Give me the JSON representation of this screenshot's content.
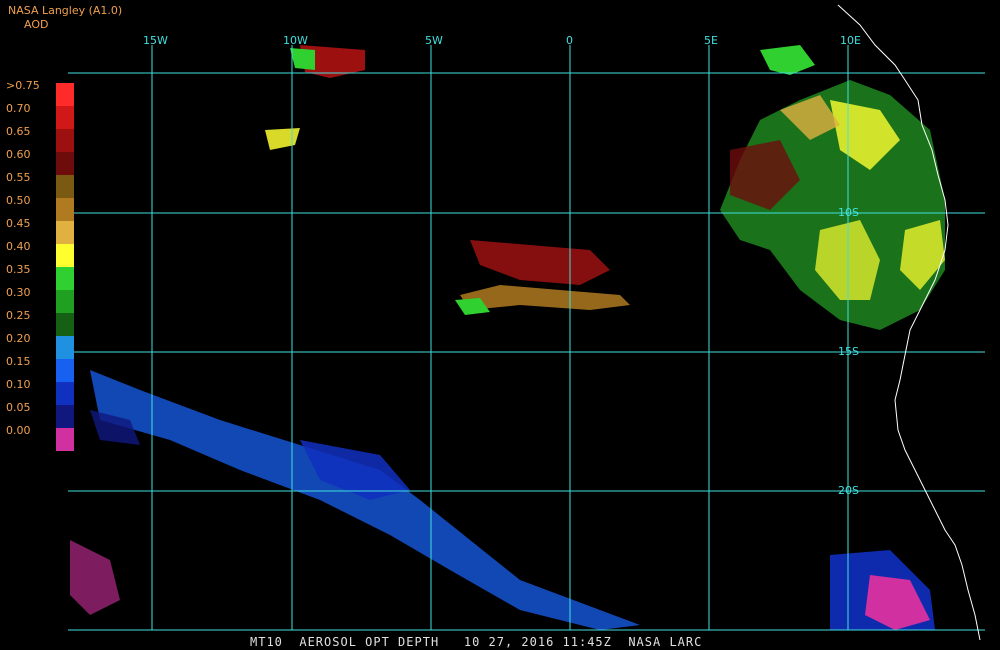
{
  "header": {
    "source": "NASA Langley (A1.0)",
    "product": "AOD"
  },
  "legend": {
    "labels": [
      ">0.75",
      "0.70",
      "0.65",
      "0.60",
      "0.55",
      "0.50",
      "0.45",
      "0.40",
      "0.35",
      "0.30",
      "0.25",
      "0.20",
      "0.15",
      "0.10",
      "0.05",
      "0.00"
    ],
    "colors": [
      "#ff2a2a",
      "#d01818",
      "#9c1010",
      "#6e0c0c",
      "#7a5a12",
      "#b07a20",
      "#e0b040",
      "#ffff30",
      "#30d030",
      "#20a020",
      "#156015",
      "#2090e0",
      "#1860f0",
      "#1030c0",
      "#101880",
      "#d030a0"
    ]
  },
  "grid": {
    "lon_labels": [
      "15W",
      "10W",
      "5W",
      "0",
      "5E",
      "10E"
    ],
    "lat_labels": [
      "10S",
      "15S",
      "20S"
    ]
  },
  "footer": "MT10  AEROSOL OPT DEPTH   10 27, 2016 11:45Z  NASA LARC",
  "colors": {
    "grid": "#40e0e0",
    "coast": "#ffffff",
    "text": "#f0a050"
  }
}
